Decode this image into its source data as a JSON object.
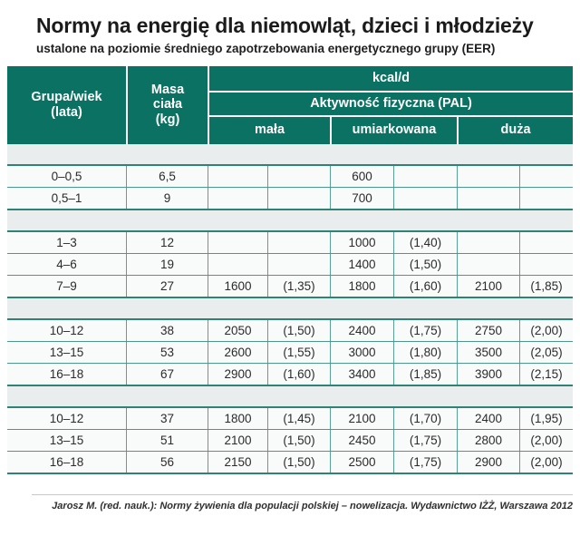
{
  "title": "Normy na energię dla niemowląt, dzieci i młodzieży",
  "subtitle": "ustalone na poziomie średniego zapotrzebowania energetycznego grupy (EER)",
  "colors": {
    "header_teal": "#0a7163",
    "section_border": "#2f8375",
    "grid_line": "#5aa093",
    "separator_band": "#e9edee",
    "row_background": "#f9fafa"
  },
  "table": {
    "header": {
      "group_label_lines": [
        "Grupa/wiek",
        "(lata)"
      ],
      "mass_label_lines": [
        "Masa",
        "ciała",
        "(kg)"
      ],
      "kcal_label": "kcal/d",
      "pal_label": "Aktywność fizyczna (PAL)",
      "activity_levels": [
        "mała",
        "umiarkowana",
        "duża"
      ]
    },
    "sections": [
      {
        "rows": [
          [
            "0–0,5",
            "6,5",
            "",
            "",
            "600",
            "",
            "",
            ""
          ],
          [
            "0,5–1",
            "9",
            "",
            "",
            "700",
            "",
            "",
            ""
          ]
        ]
      },
      {
        "rows": [
          [
            "1–3",
            "12",
            "",
            "",
            "1000",
            "(1,40)",
            "",
            ""
          ],
          [
            "4–6",
            "19",
            "",
            "",
            "1400",
            "(1,50)",
            "",
            ""
          ],
          [
            "7–9",
            "27",
            "1600",
            "(1,35)",
            "1800",
            "(1,60)",
            "2100",
            "(1,85)"
          ]
        ]
      },
      {
        "rows": [
          [
            "10–12",
            "38",
            "2050",
            "(1,50)",
            "2400",
            "(1,75)",
            "2750",
            "(2,00)"
          ],
          [
            "13–15",
            "53",
            "2600",
            "(1,55)",
            "3000",
            "(1,80)",
            "3500",
            "(2,05)"
          ],
          [
            "16–18",
            "67",
            "2900",
            "(1,60)",
            "3400",
            "(1,85)",
            "3900",
            "(2,15)"
          ]
        ]
      },
      {
        "rows": [
          [
            "10–12",
            "37",
            "1800",
            "(1,45)",
            "2100",
            "(1,70)",
            "2400",
            "(1,95)"
          ],
          [
            "13–15",
            "51",
            "2100",
            "(1,50)",
            "2450",
            "(1,75)",
            "2800",
            "(2,00)"
          ],
          [
            "16–18",
            "56",
            "2150",
            "(1,50)",
            "2500",
            "(1,75)",
            "2900",
            "(2,00)"
          ]
        ]
      }
    ]
  },
  "footer": {
    "source": "Jarosz M. (red. nauk.): Normy żywienia dla populacji polskiej – nowelizacja. Wydawnictwo IŻŻ, Warszawa 2012"
  }
}
